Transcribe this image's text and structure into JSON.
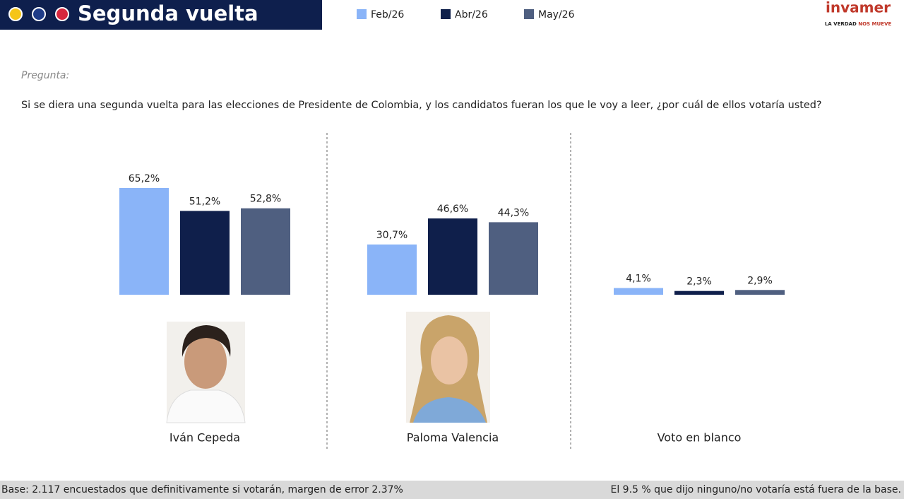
{
  "header": {
    "title": "Segunda vuelta",
    "logo": "invamer",
    "tagline_1": "LA VERDAD",
    "tagline_2": "NOS MUEVE"
  },
  "question": {
    "label": "Pregunta:",
    "text": "Si se diera una segunda vuelta para las elecciones de Presidente de Colombia, y los candidatos fueran los que le voy a leer, ¿por cuál de ellos votaría usted?"
  },
  "chart_data": {
    "type": "bar",
    "categories": [
      "Iván Cepeda",
      "Paloma Valencia",
      "Voto en blanco"
    ],
    "series": [
      {
        "name": "Feb/26",
        "color": "#8ab4f8",
        "values": [
          65.2,
          30.7,
          4.1
        ],
        "value_labels": [
          "65,2%",
          "30,7%",
          "4,1%"
        ]
      },
      {
        "name": "Abr/26",
        "color": "#0f1f4b",
        "values": [
          51.2,
          46.6,
          2.3
        ],
        "value_labels": [
          "51,2%",
          "46,6%",
          "2,3%"
        ]
      },
      {
        "name": "May/26",
        "color": "#4f5f80",
        "values": [
          52.8,
          44.3,
          2.9
        ],
        "value_labels": [
          "52,8%",
          "44,3%",
          "2,9%"
        ]
      }
    ]
  },
  "footer": {
    "left": "Base: 2.117 encuestados que definitivamente si votarán, margen de error 2.37%",
    "right": "El 9.5 % que dijo ninguno/no votaría está fuera de la base."
  }
}
